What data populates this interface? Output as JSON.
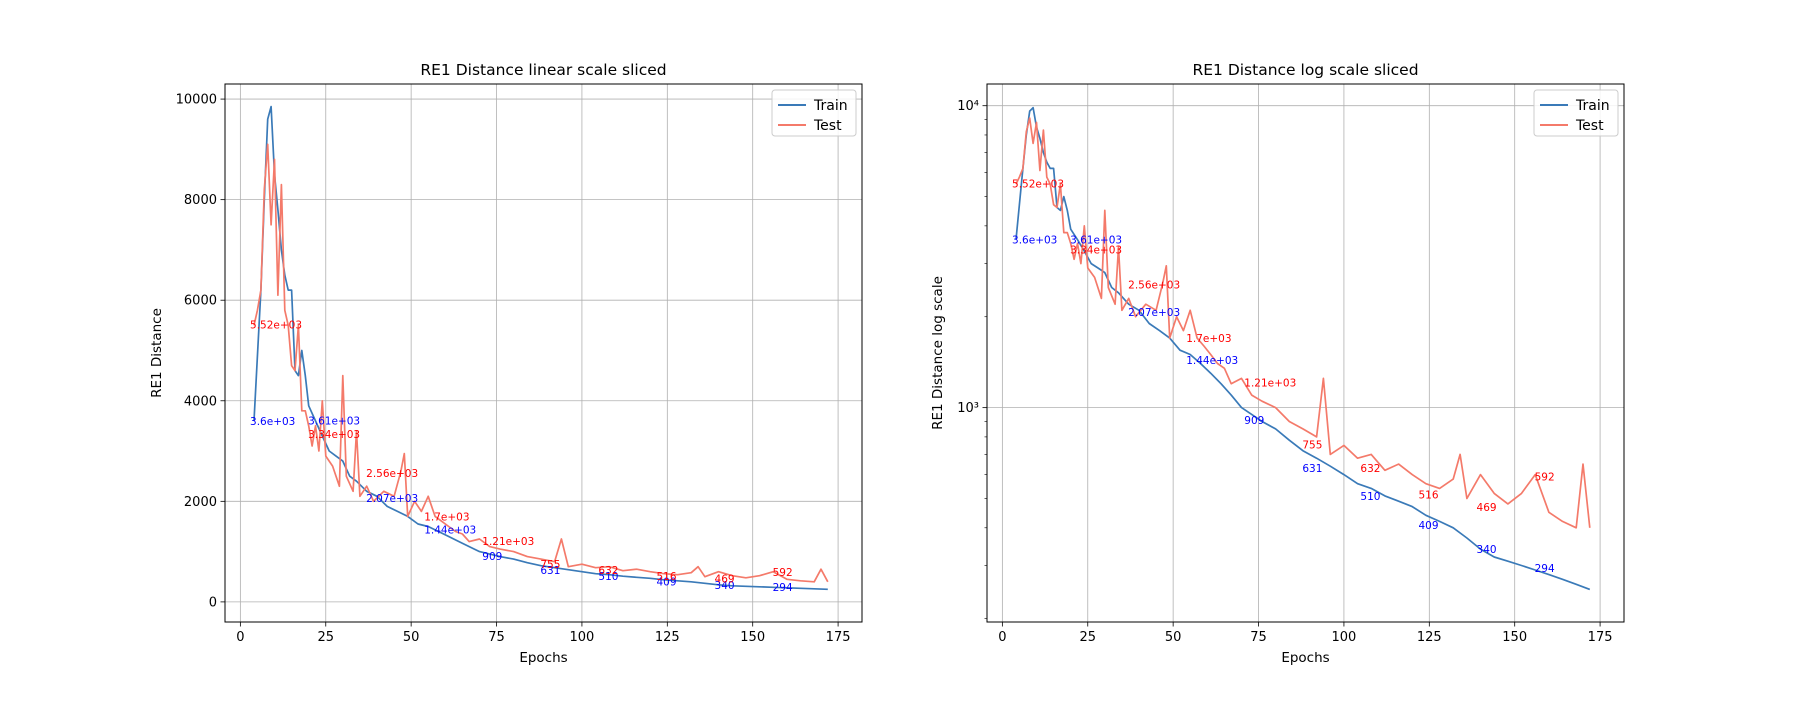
{
  "colors": {
    "train": "#3a7ab8",
    "test": "#f47a6a",
    "train_label": "#0000ff",
    "test_label": "#ff0000",
    "grid": "#b0b0b0"
  },
  "chart_data": [
    {
      "type": "line",
      "title": "RE1 Distance linear scale sliced",
      "xlabel": "Epochs",
      "ylabel": "RE1 Distance",
      "yscale": "linear",
      "xlim": [
        -4.5,
        182
      ],
      "ylim": [
        -400,
        10300
      ],
      "xticks": [
        0,
        25,
        50,
        75,
        100,
        125,
        150,
        175
      ],
      "xtick_labels": [
        "0",
        "25",
        "50",
        "75",
        "100",
        "125",
        "150",
        "175"
      ],
      "yticks": [
        0,
        2000,
        4000,
        6000,
        8000,
        10000
      ],
      "ytick_labels": [
        "0",
        "2000",
        "4000",
        "6000",
        "8000",
        "10000"
      ],
      "grid": true,
      "legend": "top-right",
      "series": [
        {
          "name": "Train",
          "key": "train",
          "points": [
            [
              4,
              3600
            ],
            [
              6,
              6200
            ],
            [
              7,
              8000
            ],
            [
              8,
              9600
            ],
            [
              9,
              9850
            ],
            [
              10,
              8500
            ],
            [
              11,
              7800
            ],
            [
              12,
              7000
            ],
            [
              13,
              6500
            ],
            [
              14,
              6200
            ],
            [
              15,
              6200
            ],
            [
              16,
              4600
            ],
            [
              17,
              4500
            ],
            [
              18,
              5000
            ],
            [
              19,
              4500
            ],
            [
              20,
              3900
            ],
            [
              22,
              3600
            ],
            [
              24,
              3300
            ],
            [
              26,
              3000
            ],
            [
              28,
              2900
            ],
            [
              30,
              2800
            ],
            [
              32,
              2500
            ],
            [
              34,
              2400
            ],
            [
              37,
              2200
            ],
            [
              40,
              2100
            ],
            [
              43,
              1900
            ],
            [
              46,
              1800
            ],
            [
              49,
              1700
            ],
            [
              52,
              1550
            ],
            [
              55,
              1500
            ],
            [
              58,
              1400
            ],
            [
              61,
              1300
            ],
            [
              64,
              1200
            ],
            [
              67,
              1100
            ],
            [
              70,
              1000
            ],
            [
              73,
              950
            ],
            [
              76,
              900
            ],
            [
              80,
              850
            ],
            [
              84,
              780
            ],
            [
              88,
              720
            ],
            [
              92,
              680
            ],
            [
              96,
              640
            ],
            [
              100,
              600
            ],
            [
              104,
              560
            ],
            [
              108,
              540
            ],
            [
              112,
              510
            ],
            [
              116,
              490
            ],
            [
              120,
              470
            ],
            [
              124,
              440
            ],
            [
              128,
              420
            ],
            [
              132,
              400
            ],
            [
              136,
              370
            ],
            [
              140,
              340
            ],
            [
              144,
              320
            ],
            [
              148,
              310
            ],
            [
              152,
              300
            ],
            [
              156,
              290
            ],
            [
              160,
              280
            ],
            [
              164,
              270
            ],
            [
              168,
              260
            ],
            [
              172,
              250
            ]
          ]
        },
        {
          "name": "Test",
          "key": "test",
          "points": [
            [
              4,
              5500
            ],
            [
              5,
              5800
            ],
            [
              6,
              6200
            ],
            [
              7,
              8200
            ],
            [
              8,
              9100
            ],
            [
              9,
              7500
            ],
            [
              10,
              8800
            ],
            [
              11,
              6100
            ],
            [
              12,
              8300
            ],
            [
              13,
              5800
            ],
            [
              14,
              5500
            ],
            [
              15,
              4700
            ],
            [
              16,
              4600
            ],
            [
              17,
              5500
            ],
            [
              18,
              3800
            ],
            [
              19,
              3800
            ],
            [
              20,
              3500
            ],
            [
              21,
              3100
            ],
            [
              22,
              3500
            ],
            [
              23,
              3000
            ],
            [
              24,
              4000
            ],
            [
              25,
              2900
            ],
            [
              27,
              2700
            ],
            [
              29,
              2300
            ],
            [
              30,
              4500
            ],
            [
              31,
              2500
            ],
            [
              33,
              2200
            ],
            [
              34,
              3400
            ],
            [
              35,
              2100
            ],
            [
              37,
              2300
            ],
            [
              39,
              2000
            ],
            [
              42,
              2200
            ],
            [
              45,
              2100
            ],
            [
              47,
              2600
            ],
            [
              48,
              2950
            ],
            [
              49,
              1700
            ],
            [
              51,
              2000
            ],
            [
              53,
              1800
            ],
            [
              55,
              2100
            ],
            [
              57,
              1700
            ],
            [
              59,
              1600
            ],
            [
              61,
              1500
            ],
            [
              63,
              1400
            ],
            [
              65,
              1350
            ],
            [
              67,
              1200
            ],
            [
              70,
              1250
            ],
            [
              73,
              1100
            ],
            [
              76,
              1050
            ],
            [
              80,
              1000
            ],
            [
              84,
              900
            ],
            [
              88,
              850
            ],
            [
              92,
              800
            ],
            [
              94,
              1250
            ],
            [
              96,
              700
            ],
            [
              100,
              750
            ],
            [
              104,
              680
            ],
            [
              108,
              700
            ],
            [
              112,
              620
            ],
            [
              116,
              650
            ],
            [
              120,
              600
            ],
            [
              124,
              560
            ],
            [
              128,
              540
            ],
            [
              132,
              580
            ],
            [
              134,
              700
            ],
            [
              136,
              500
            ],
            [
              140,
              600
            ],
            [
              144,
              520
            ],
            [
              148,
              480
            ],
            [
              152,
              520
            ],
            [
              156,
              600
            ],
            [
              160,
              450
            ],
            [
              164,
              420
            ],
            [
              168,
              400
            ],
            [
              170,
              650
            ],
            [
              172,
              400
            ]
          ]
        }
      ],
      "annotations": [
        {
          "x": 4,
          "y": 3600,
          "text": "3.6e+03",
          "series": "train"
        },
        {
          "x": 21,
          "y": 3610,
          "text": "3.61e+03",
          "series": "train"
        },
        {
          "x": 38,
          "y": 2070,
          "text": "2.07e+03",
          "series": "train"
        },
        {
          "x": 55,
          "y": 1440,
          "text": "1.44e+03",
          "series": "train"
        },
        {
          "x": 72,
          "y": 909,
          "text": "909",
          "series": "train"
        },
        {
          "x": 89,
          "y": 631,
          "text": "631",
          "series": "train"
        },
        {
          "x": 106,
          "y": 510,
          "text": "510",
          "series": "train"
        },
        {
          "x": 123,
          "y": 409,
          "text": "409",
          "series": "train"
        },
        {
          "x": 140,
          "y": 340,
          "text": "340",
          "series": "train"
        },
        {
          "x": 157,
          "y": 294,
          "text": "294",
          "series": "train"
        },
        {
          "x": 4,
          "y": 5520,
          "text": "5.52e+03",
          "series": "test"
        },
        {
          "x": 21,
          "y": 3340,
          "text": "3.34e+03",
          "series": "test"
        },
        {
          "x": 38,
          "y": 2560,
          "text": "2.56e+03",
          "series": "test"
        },
        {
          "x": 55,
          "y": 1700,
          "text": "1.7e+03",
          "series": "test"
        },
        {
          "x": 72,
          "y": 1210,
          "text": "1.21e+03",
          "series": "test"
        },
        {
          "x": 89,
          "y": 755,
          "text": "755",
          "series": "test"
        },
        {
          "x": 106,
          "y": 632,
          "text": "632",
          "series": "test"
        },
        {
          "x": 123,
          "y": 516,
          "text": "516",
          "series": "test"
        },
        {
          "x": 140,
          "y": 469,
          "text": "469",
          "series": "test"
        },
        {
          "x": 157,
          "y": 592,
          "text": "592",
          "series": "test"
        }
      ]
    },
    {
      "type": "line",
      "title": "RE1 Distance log scale sliced",
      "xlabel": "Epochs",
      "ylabel": "RE1 Distance log scale",
      "yscale": "log",
      "xlim": [
        -4.5,
        182
      ],
      "ylim": [
        195,
        11800
      ],
      "xticks": [
        0,
        25,
        50,
        75,
        100,
        125,
        150,
        175
      ],
      "xtick_labels": [
        "0",
        "25",
        "50",
        "75",
        "100",
        "125",
        "150",
        "175"
      ],
      "yticks": [
        1000,
        10000
      ],
      "ytick_labels": [
        "10³",
        "10⁴"
      ],
      "grid": true,
      "legend": "top-right",
      "series": [
        {
          "name": "Train",
          "key": "train",
          "shared_from": 0
        },
        {
          "name": "Test",
          "key": "test",
          "shared_from": 0
        }
      ],
      "annotations_shared_from": 0
    }
  ]
}
